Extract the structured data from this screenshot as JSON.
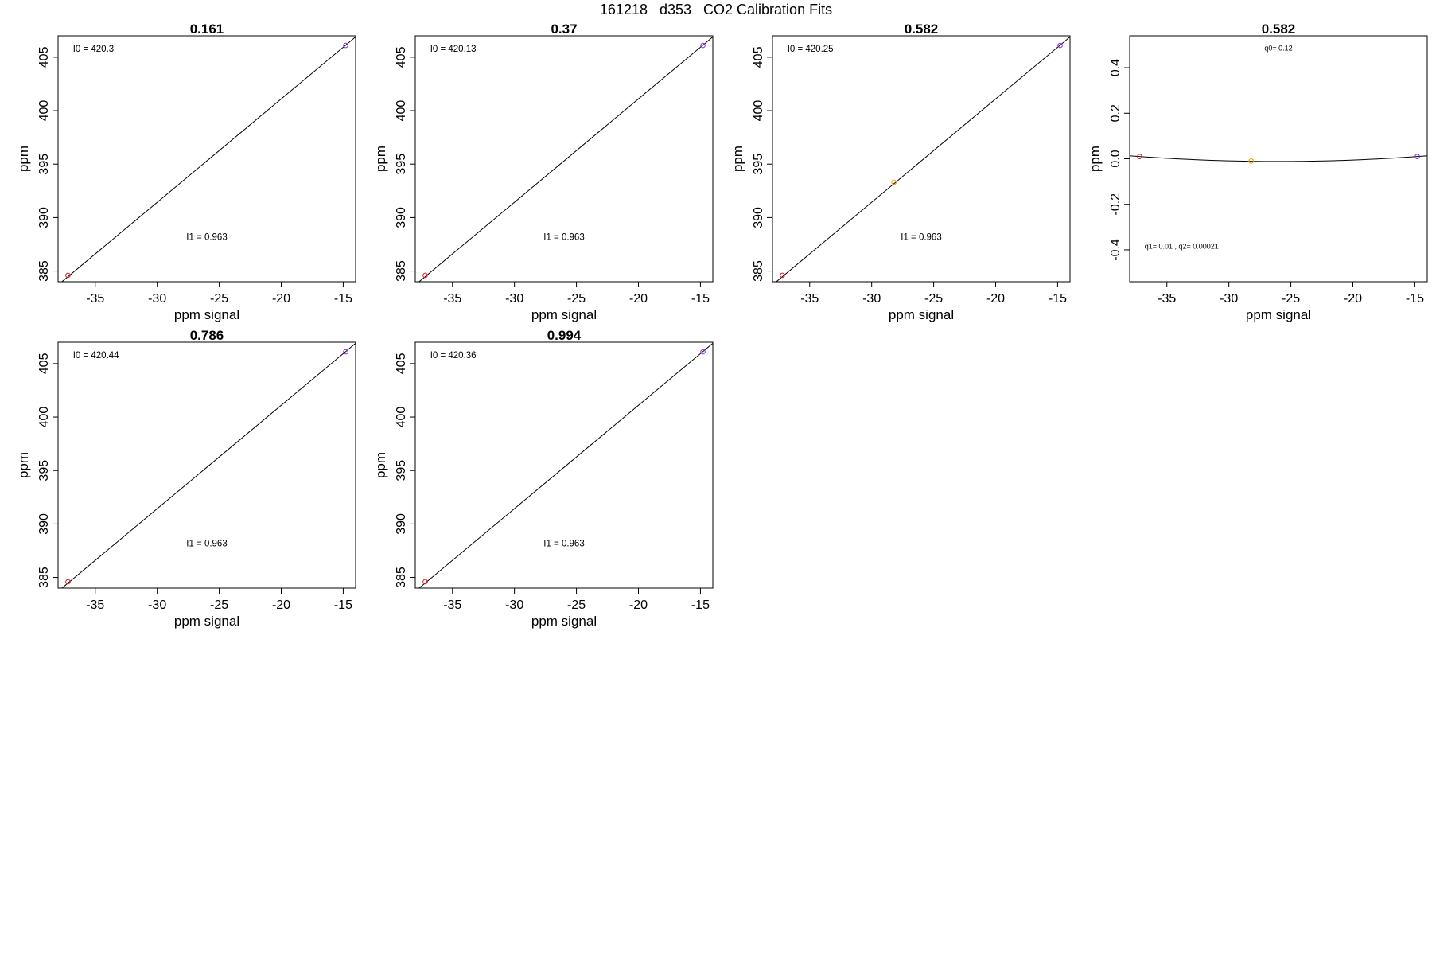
{
  "figure_title": "161218   d353   CO2 Calibration Fits",
  "chart_data": [
    {
      "type": "scatter",
      "title": "0.161",
      "xlabel": "ppm signal",
      "ylabel": "ppm",
      "xlim": [
        -38,
        -14
      ],
      "ylim": [
        384,
        407
      ],
      "xticks": [
        -35,
        -30,
        -25,
        -20,
        -15
      ],
      "yticks": [
        385,
        390,
        395,
        400,
        405
      ],
      "fit_line": [
        {
          "x": -38,
          "y": 383.7
        },
        {
          "x": -14,
          "y": 406.9
        }
      ],
      "points": [
        {
          "x": -37.2,
          "y": 384.6,
          "color": "#e41a1c"
        },
        {
          "x": -14.8,
          "y": 406.1,
          "color": "#8a2be2"
        }
      ],
      "annotations": [
        {
          "text": "I0 =  420.3",
          "x": -36.8,
          "y": 405.5,
          "anchor": "start"
        },
        {
          "text": "I1 =  0.963",
          "x": -26.0,
          "y": 387.9,
          "anchor": "middle"
        }
      ]
    },
    {
      "type": "scatter",
      "title": "0.37",
      "xlabel": "ppm signal",
      "ylabel": "ppm",
      "xlim": [
        -38,
        -14
      ],
      "ylim": [
        384,
        407
      ],
      "xticks": [
        -35,
        -30,
        -25,
        -20,
        -15
      ],
      "yticks": [
        385,
        390,
        395,
        400,
        405
      ],
      "fit_line": [
        {
          "x": -38,
          "y": 383.7
        },
        {
          "x": -14,
          "y": 406.9
        }
      ],
      "points": [
        {
          "x": -37.2,
          "y": 384.6,
          "color": "#e41a1c"
        },
        {
          "x": -14.8,
          "y": 406.1,
          "color": "#8a2be2"
        }
      ],
      "annotations": [
        {
          "text": "I0 =  420.13",
          "x": -36.8,
          "y": 405.5,
          "anchor": "start"
        },
        {
          "text": "I1 =  0.963",
          "x": -26.0,
          "y": 387.9,
          "anchor": "middle"
        }
      ]
    },
    {
      "type": "scatter",
      "title": "0.582",
      "xlabel": "ppm signal",
      "ylabel": "ppm",
      "xlim": [
        -38,
        -14
      ],
      "ylim": [
        384,
        407
      ],
      "xticks": [
        -35,
        -30,
        -25,
        -20,
        -15
      ],
      "yticks": [
        385,
        390,
        395,
        400,
        405
      ],
      "fit_line": [
        {
          "x": -38,
          "y": 383.7
        },
        {
          "x": -14,
          "y": 406.9
        }
      ],
      "points": [
        {
          "x": -37.2,
          "y": 384.6,
          "color": "#e41a1c"
        },
        {
          "x": -28.2,
          "y": 393.3,
          "color": "#ff9900"
        },
        {
          "x": -14.8,
          "y": 406.1,
          "color": "#8a2be2"
        }
      ],
      "annotations": [
        {
          "text": "I0 =  420.25",
          "x": -36.8,
          "y": 405.5,
          "anchor": "start"
        },
        {
          "text": "I1 =  0.963",
          "x": -26.0,
          "y": 387.9,
          "anchor": "middle"
        }
      ]
    },
    {
      "type": "scatter",
      "title": "0.582",
      "xlabel": "ppm signal",
      "ylabel": "ppm",
      "xlim": [
        -38,
        -14
      ],
      "ylim": [
        -0.54,
        0.54
      ],
      "xticks": [
        -35,
        -30,
        -25,
        -20,
        -15
      ],
      "yticks": [
        -0.4,
        -0.2,
        0.0,
        0.2,
        0.4
      ],
      "ytick_labels": [
        "-0.4",
        "-0.2",
        "0.0",
        "0.2",
        "0.4"
      ],
      "curve_quadratic": {
        "q0": 0.12,
        "q1": 0.01,
        "q2": 0.00021
      },
      "points": [
        {
          "x": -37.2,
          "y": 0.01,
          "color": "#e41a1c"
        },
        {
          "x": -28.2,
          "y": -0.01,
          "color": "#ff9900"
        },
        {
          "x": -14.8,
          "y": 0.01,
          "color": "#8a2be2"
        }
      ],
      "annotations": [
        {
          "text": "q0= 0.12",
          "x": -26.0,
          "y": 0.475,
          "anchor": "middle",
          "small": true
        },
        {
          "text": "q1= 0.01 , q2= 0.00021",
          "x": -36.8,
          "y": -0.395,
          "anchor": "start",
          "small": true
        }
      ]
    },
    {
      "type": "scatter",
      "title": "0.786",
      "xlabel": "ppm signal",
      "ylabel": "ppm",
      "xlim": [
        -38,
        -14
      ],
      "ylim": [
        384,
        407
      ],
      "xticks": [
        -35,
        -30,
        -25,
        -20,
        -15
      ],
      "yticks": [
        385,
        390,
        395,
        400,
        405
      ],
      "fit_line": [
        {
          "x": -38,
          "y": 383.7
        },
        {
          "x": -14,
          "y": 406.9
        }
      ],
      "points": [
        {
          "x": -37.2,
          "y": 384.6,
          "color": "#e41a1c"
        },
        {
          "x": -14.8,
          "y": 406.1,
          "color": "#8a2be2"
        }
      ],
      "annotations": [
        {
          "text": "I0 =  420.44",
          "x": -36.8,
          "y": 405.5,
          "anchor": "start"
        },
        {
          "text": "I1 =  0.963",
          "x": -26.0,
          "y": 387.9,
          "anchor": "middle"
        }
      ]
    },
    {
      "type": "scatter",
      "title": "0.994",
      "xlabel": "ppm signal",
      "ylabel": "ppm",
      "xlim": [
        -38,
        -14
      ],
      "ylim": [
        384,
        407
      ],
      "xticks": [
        -35,
        -30,
        -25,
        -20,
        -15
      ],
      "yticks": [
        385,
        390,
        395,
        400,
        405
      ],
      "fit_line": [
        {
          "x": -38,
          "y": 383.7
        },
        {
          "x": -14,
          "y": 406.9
        }
      ],
      "points": [
        {
          "x": -37.2,
          "y": 384.6,
          "color": "#e41a1c"
        },
        {
          "x": -14.8,
          "y": 406.1,
          "color": "#8a2be2"
        }
      ],
      "annotations": [
        {
          "text": "I0 =  420.36",
          "x": -36.8,
          "y": 405.5,
          "anchor": "start"
        },
        {
          "text": "I1 =  0.963",
          "x": -26.0,
          "y": 387.9,
          "anchor": "middle"
        }
      ]
    }
  ]
}
